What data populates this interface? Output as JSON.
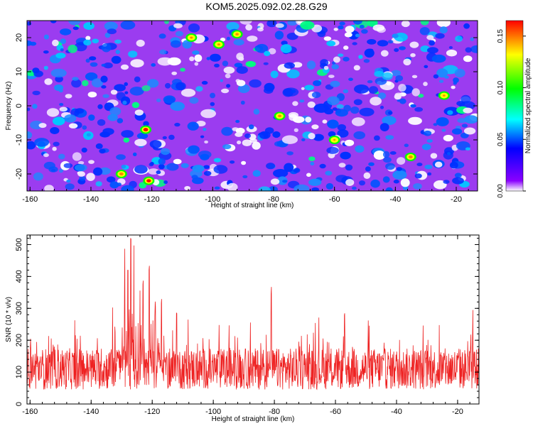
{
  "title": "KOM5.2025.092.02.28.G29",
  "chart_data": [
    {
      "type": "heatmap",
      "xlabel": "Height of straight line (km)",
      "ylabel": "Frequency (Hz)",
      "xlim": [
        -161,
        -13
      ],
      "ylim": [
        -25,
        25
      ],
      "xticks": [
        -160,
        -140,
        -120,
        -100,
        -80,
        -60,
        -40,
        -20
      ],
      "yticks": [
        -20,
        -10,
        0,
        10,
        20
      ],
      "colorbar": {
        "label": "Normalized spectral amplitude",
        "range": [
          0.0,
          0.165
        ],
        "ticks": [
          "0.00",
          "0.05",
          "0.10",
          "0.15"
        ],
        "colors": [
          "#ffffff",
          "#8a00ff",
          "#0000ff",
          "#00ffff",
          "#00ff00",
          "#ffff00",
          "#ff0000"
        ]
      },
      "peaks": [
        {
          "x": -122,
          "y": -7,
          "z": 0.16
        },
        {
          "x": -121,
          "y": -22,
          "z": 0.15
        },
        {
          "x": -130,
          "y": -20,
          "z": 0.14
        },
        {
          "x": -78,
          "y": -3,
          "z": 0.12
        },
        {
          "x": -35,
          "y": -15,
          "z": 0.14
        },
        {
          "x": -92,
          "y": 21,
          "z": 0.11
        },
        {
          "x": -107,
          "y": 20,
          "z": 0.1
        },
        {
          "x": -98,
          "y": 18,
          "z": 0.1
        },
        {
          "x": -24,
          "y": 3,
          "z": 0.09
        },
        {
          "x": -60,
          "y": -10,
          "z": 0.08
        }
      ]
    },
    {
      "type": "line",
      "xlabel": "Height of straight line (km)",
      "ylabel": "SNR (10 * v/v)",
      "xlim": [
        -161,
        -13
      ],
      "ylim": [
        0,
        530
      ],
      "xticks": [
        -160,
        -140,
        -120,
        -100,
        -80,
        -60,
        -40,
        -20
      ],
      "yticks": [
        0,
        100,
        200,
        300,
        400,
        500
      ],
      "series": [
        {
          "color": "#ee2222",
          "baseline": 110,
          "peaks": [
            {
              "x": -127,
              "y": 525
            },
            {
              "x": -126,
              "y": 500
            },
            {
              "x": -121,
              "y": 450
            },
            {
              "x": -128,
              "y": 430
            },
            {
              "x": -123,
              "y": 400
            },
            {
              "x": -129,
              "y": 390
            },
            {
              "x": -124,
              "y": 360
            },
            {
              "x": -117,
              "y": 340
            },
            {
              "x": -119,
              "y": 330
            },
            {
              "x": -81,
              "y": 370
            },
            {
              "x": -133,
              "y": 310
            },
            {
              "x": -112,
              "y": 300
            },
            {
              "x": -57,
              "y": 300
            },
            {
              "x": -15,
              "y": 300
            }
          ]
        }
      ]
    }
  ]
}
